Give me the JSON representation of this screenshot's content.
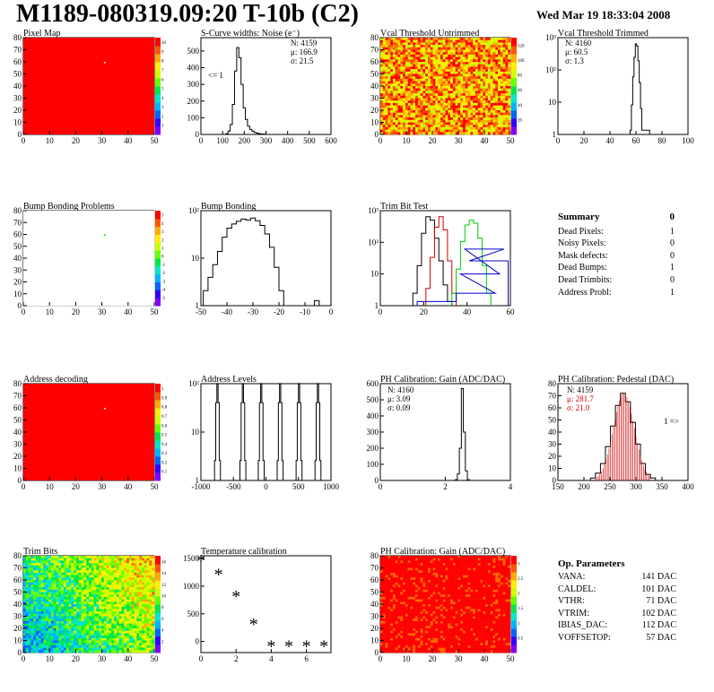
{
  "header": {
    "title": "M1189-080319.09:20 T-10b (C2)",
    "date": "Wed Mar 19 18:33:04 2008"
  },
  "colors": {
    "map_red": "#ff0000",
    "hist": "#000000",
    "trim_red": "#cc0000",
    "trim_green": "#00cc00",
    "trim_blue": "#0000cc",
    "pedestal_fit": "#cc0000"
  },
  "chart_data": [
    {
      "id": "pixel_map",
      "type": "heatmap",
      "title": "Pixel Map",
      "x_ticks": [
        "0",
        "10",
        "20",
        "30",
        "40",
        "50"
      ],
      "y_ticks": [
        "0",
        "10",
        "20",
        "30",
        "40",
        "50",
        "60",
        "70",
        "80"
      ],
      "palette_ticks": [
        "1",
        "2",
        "3",
        "4",
        "5",
        "6",
        "7",
        "8",
        "9",
        "10"
      ],
      "fill": "uniform red",
      "outliers": [
        {
          "x": 32,
          "y": 60
        }
      ]
    },
    {
      "id": "scurve",
      "type": "bar",
      "title": "S-Curve widths: Noise (e⁻)",
      "x_ticks": [
        "0",
        "100",
        "200",
        "300",
        "400",
        "500",
        "600"
      ],
      "y_ticks": [
        "0",
        "100",
        "200",
        "300",
        "400",
        "500"
      ],
      "stats": [
        "N: 4159",
        "μ: 166.9",
        "σ: 21.5"
      ],
      "annotation": "<= 1",
      "x": [
        120,
        130,
        140,
        150,
        160,
        170,
        180,
        190,
        200,
        210,
        220,
        230,
        240,
        250,
        260,
        270,
        280,
        290
      ],
      "values": [
        5,
        20,
        60,
        180,
        380,
        520,
        460,
        300,
        160,
        90,
        50,
        30,
        20,
        12,
        8,
        5,
        3,
        2
      ]
    },
    {
      "id": "vcal_untrimmed",
      "type": "heatmap",
      "title": "Vcal Threshold Untrimmed",
      "x_ticks": [
        "0",
        "10",
        "20",
        "30",
        "40",
        "50"
      ],
      "y_ticks": [
        "0",
        "10",
        "20",
        "30",
        "40",
        "50",
        "60",
        "70",
        "80"
      ],
      "palette_ticks": [
        "20",
        "40",
        "60",
        "80",
        "100",
        "120"
      ]
    },
    {
      "id": "vcal_trimmed",
      "type": "bar",
      "title": "Vcal Threshold Trimmed",
      "x_ticks": [
        "0",
        "20",
        "40",
        "60",
        "80",
        "100"
      ],
      "y_ticks": [
        "1",
        "10",
        "10²",
        "10³"
      ],
      "stats": [
        "N: 4160",
        "μ: 60.5",
        "σ: 1.3"
      ],
      "x": [
        56,
        57,
        58,
        59,
        60,
        61,
        62,
        63,
        64,
        65,
        70
      ],
      "values": [
        1,
        8,
        80,
        400,
        1200,
        1000,
        300,
        50,
        6,
        1,
        1
      ]
    },
    {
      "id": "bump_problems",
      "type": "heatmap",
      "title": "Bump Bonding Problems",
      "x_ticks": [
        "0",
        "10",
        "20",
        "30",
        "40",
        "50"
      ],
      "y_ticks": [
        "0",
        "10",
        "20",
        "30",
        "40",
        "50",
        "60",
        "70",
        "80"
      ],
      "palette_ticks": [
        "-5",
        "-4",
        "-3",
        "-2",
        "-1",
        "0",
        "1",
        "2",
        "3",
        "4",
        "5"
      ],
      "outliers": [
        {
          "x": 32,
          "y": 60
        }
      ]
    },
    {
      "id": "bump_bonding",
      "type": "bar",
      "title": "Bump Bonding",
      "x_ticks": [
        "-50",
        "-40",
        "-30",
        "-20",
        "-10",
        "0"
      ],
      "y_ticks": [
        "1",
        "10",
        "10²"
      ],
      "x": [
        -48,
        -46,
        -44,
        -42,
        -40,
        -38,
        -36,
        -34,
        -32,
        -30,
        -28,
        -26,
        -24,
        -22,
        -20,
        -18,
        -16,
        -1
      ],
      "values": [
        2,
        5,
        12,
        30,
        80,
        150,
        200,
        240,
        280,
        260,
        300,
        250,
        180,
        100,
        40,
        10,
        2,
        1
      ]
    },
    {
      "id": "trim_bit_test",
      "type": "line",
      "title": "Trim Bit Test",
      "x_ticks": [
        "0",
        "20",
        "40",
        "60"
      ],
      "y_ticks": [
        "1",
        "10",
        "10²",
        "10³"
      ],
      "series": [
        {
          "color": "#000000",
          "x": [
            16,
            18,
            20,
            22,
            24,
            26,
            28,
            30,
            32
          ],
          "values": [
            2,
            20,
            300,
            1200,
            900,
            200,
            30,
            4,
            1
          ]
        },
        {
          "color": "#cc0000",
          "x": [
            22,
            24,
            26,
            28,
            30,
            32,
            34
          ],
          "values": [
            3,
            40,
            500,
            1200,
            400,
            30,
            2
          ]
        },
        {
          "color": "#00cc00",
          "x": [
            34,
            36,
            38,
            40,
            42,
            44,
            46,
            48,
            50
          ],
          "values": [
            2,
            15,
            150,
            600,
            900,
            700,
            200,
            20,
            2
          ]
        },
        {
          "color": "#0000cc",
          "x": [
            26,
            44,
            46,
            48,
            50
          ],
          "values": [
            1,
            2,
            10,
            80,
            30
          ]
        }
      ]
    },
    {
      "id": "address_decoding",
      "type": "heatmap",
      "title": "Address decoding",
      "x_ticks": [
        "0",
        "10",
        "20",
        "30",
        "40",
        "50"
      ],
      "y_ticks": [
        "0",
        "10",
        "20",
        "30",
        "40",
        "50",
        "60",
        "70",
        "80"
      ],
      "palette_ticks": [
        "0.1",
        "0.2",
        "0.3",
        "0.4",
        "0.5",
        "0.6",
        "0.7",
        "0.8",
        "0.9",
        "1"
      ],
      "outliers": [
        {
          "x": 32,
          "y": 60
        }
      ]
    },
    {
      "id": "address_levels",
      "type": "bar",
      "title": "Address Levels",
      "x_ticks": [
        "-1000",
        "-500",
        "0",
        "500",
        "1000"
      ],
      "y_ticks": [
        "1",
        "10",
        "10²"
      ],
      "peaks": [
        -820,
        -390,
        -80,
        240,
        560,
        880
      ]
    },
    {
      "id": "ph_gain",
      "type": "bar",
      "title": "PH Calibration: Gain (ADC/DAC)",
      "x_ticks": [
        "0",
        "2",
        "4"
      ],
      "y_ticks": [
        "0",
        "100",
        "200",
        "300",
        "400",
        "500",
        "600"
      ],
      "stats": [
        "N: 4160",
        "μ: 3.09",
        "σ: 0.09"
      ],
      "x": [
        2.8,
        2.9,
        3.0,
        3.1,
        3.2,
        3.3,
        3.4
      ],
      "values": [
        5,
        40,
        200,
        570,
        300,
        60,
        5
      ]
    },
    {
      "id": "ph_pedestal",
      "type": "bar",
      "title": "PH Calibration: Pedestal (DAC)",
      "x_ticks": [
        "150",
        "200",
        "250",
        "300",
        "350",
        "400"
      ],
      "y_ticks": [
        "0",
        "10",
        "20",
        "30",
        "40",
        "50",
        "60",
        "70",
        "80"
      ],
      "stats": [
        "N: 4159",
        "μ: 281.7",
        "σ: 21.0"
      ],
      "annotation": "1 =>",
      "x": [
        220,
        230,
        240,
        250,
        260,
        270,
        280,
        290,
        300,
        310,
        320,
        330,
        340
      ],
      "values": [
        2,
        6,
        14,
        28,
        45,
        62,
        72,
        65,
        48,
        30,
        14,
        5,
        2
      ]
    },
    {
      "id": "trim_bits",
      "type": "heatmap",
      "title": "Trim Bits",
      "x_ticks": [
        "0",
        "10",
        "20",
        "30",
        "40",
        "50"
      ],
      "y_ticks": [
        "0",
        "10",
        "20",
        "30",
        "40",
        "50",
        "60",
        "70",
        "80"
      ],
      "palette_ticks": [
        "2",
        "4",
        "6",
        "8",
        "10",
        "12",
        "14",
        "16"
      ]
    },
    {
      "id": "temperature",
      "type": "scatter",
      "title": "Temperature calibration",
      "x_ticks": [
        "0",
        "2",
        "4",
        "6"
      ],
      "y_ticks": [
        "0",
        "500",
        "1000",
        "1500"
      ],
      "x": [
        0,
        1,
        2,
        3,
        4,
        5,
        6,
        7
      ],
      "values": [
        1500,
        1250,
        850,
        350,
        -50,
        -50,
        -50,
        -50
      ]
    },
    {
      "id": "ph_gain_map",
      "type": "heatmap",
      "title": "PH Calibration: Gain (ADC/DAC)",
      "x_ticks": [
        "0",
        "10",
        "20",
        "30",
        "40",
        "50"
      ],
      "y_ticks": [
        "0",
        "10",
        "20",
        "30",
        "40",
        "50",
        "60",
        "70",
        "80"
      ],
      "palette_ticks": [
        "0.5",
        "1",
        "1.5",
        "2",
        "2.5",
        "3"
      ]
    }
  ],
  "summary": {
    "title": "Summary",
    "value": "0",
    "rows": [
      {
        "label": "Dead Pixels:",
        "value": "1"
      },
      {
        "label": "Noisy Pixels:",
        "value": "0"
      },
      {
        "label": "Mask defects:",
        "value": "0"
      },
      {
        "label": "Dead Bumps:",
        "value": "1"
      },
      {
        "label": "Dead Trimbits:",
        "value": "0"
      },
      {
        "label": "Address Probl:",
        "value": "1"
      }
    ]
  },
  "params": {
    "title": "Op. Parameters",
    "rows": [
      {
        "label": "VANA:",
        "value": "141 DAC"
      },
      {
        "label": "CALDEL:",
        "value": "101 DAC"
      },
      {
        "label": "VTHR:",
        "value": "71 DAC"
      },
      {
        "label": "VTRIM:",
        "value": "102 DAC"
      },
      {
        "label": "IBIAS_DAC:",
        "value": "112 DAC"
      },
      {
        "label": "VOFFSETOP:",
        "value": "57 DAC"
      }
    ]
  }
}
